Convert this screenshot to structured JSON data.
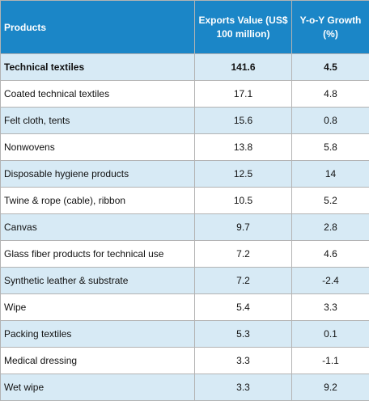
{
  "chart_data": {
    "type": "table",
    "columns": [
      "Products",
      "Exports Value (US$ 100 million)",
      "Y-o-Y Growth (%)"
    ],
    "rows": [
      {
        "product": "Technical textiles",
        "exports": "141.6",
        "growth": "4.5",
        "bold": true
      },
      {
        "product": "Coated technical textiles",
        "exports": "17.1",
        "growth": "4.8"
      },
      {
        "product": "Felt cloth, tents",
        "exports": "15.6",
        "growth": "0.8"
      },
      {
        "product": "Nonwovens",
        "exports": "13.8",
        "growth": "5.8"
      },
      {
        "product": "Disposable hygiene products",
        "exports": "12.5",
        "growth": "14"
      },
      {
        "product": "Twine & rope (cable), ribbon",
        "exports": "10.5",
        "growth": "5.2"
      },
      {
        "product": "Canvas",
        "exports": "9.7",
        "growth": "2.8"
      },
      {
        "product": "Glass fiber products for technical use",
        "exports": "7.2",
        "growth": "4.6"
      },
      {
        "product": "Synthetic leather & substrate",
        "exports": "7.2",
        "growth": "-2.4"
      },
      {
        "product": "Wipe",
        "exports": "5.4",
        "growth": "3.3"
      },
      {
        "product": "Packing textiles",
        "exports": "5.3",
        "growth": "0.1"
      },
      {
        "product": "Medical dressing",
        "exports": "3.3",
        "growth": "-1.1"
      },
      {
        "product": "Wet wipe",
        "exports": "3.3",
        "growth": "9.2"
      }
    ]
  },
  "colors": {
    "header_background": "#1b86c7",
    "header_text": "#ffffff",
    "row_band": "#d7eaf5",
    "row_plain": "#ffffff",
    "grid": "#b3b3b3"
  }
}
